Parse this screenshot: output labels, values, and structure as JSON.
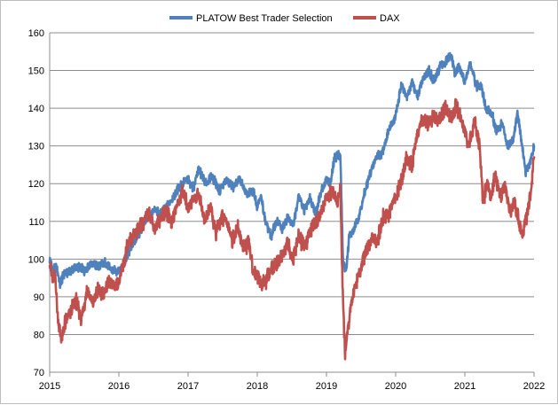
{
  "chart_data": {
    "type": "line",
    "title": "",
    "xlabel": "",
    "ylabel": "",
    "xlim": [
      2015,
      2022
    ],
    "ylim": [
      70,
      160
    ],
    "y_ticks": [
      70,
      80,
      90,
      100,
      110,
      120,
      130,
      140,
      150,
      160
    ],
    "x_ticks": [
      "2015",
      "2016",
      "2017",
      "2018",
      "2019",
      "2020",
      "2021",
      "2022"
    ],
    "grid": "horizontal",
    "legend_position": "top-center",
    "series": [
      {
        "name": "PLATOW Best Trader Selection",
        "color": "#4f81bd",
        "points": [
          [
            2015.0,
            100
          ],
          [
            2015.05,
            97
          ],
          [
            2015.1,
            98
          ],
          [
            2015.15,
            93
          ],
          [
            2015.2,
            96
          ],
          [
            2015.3,
            97
          ],
          [
            2015.4,
            98
          ],
          [
            2015.5,
            97
          ],
          [
            2015.6,
            99
          ],
          [
            2015.7,
            98
          ],
          [
            2015.8,
            99
          ],
          [
            2015.9,
            97
          ],
          [
            2016.0,
            97
          ],
          [
            2016.1,
            100
          ],
          [
            2016.2,
            104
          ],
          [
            2016.3,
            107
          ],
          [
            2016.4,
            111
          ],
          [
            2016.5,
            113
          ],
          [
            2016.6,
            112
          ],
          [
            2016.7,
            114
          ],
          [
            2016.8,
            117
          ],
          [
            2016.9,
            120
          ],
          [
            2017.0,
            121
          ],
          [
            2017.08,
            119
          ],
          [
            2017.15,
            124
          ],
          [
            2017.25,
            120
          ],
          [
            2017.35,
            122
          ],
          [
            2017.45,
            118
          ],
          [
            2017.55,
            121
          ],
          [
            2017.65,
            119
          ],
          [
            2017.75,
            121
          ],
          [
            2017.85,
            117
          ],
          [
            2017.95,
            118
          ],
          [
            2018.0,
            114
          ],
          [
            2018.05,
            117
          ],
          [
            2018.12,
            110
          ],
          [
            2018.2,
            106
          ],
          [
            2018.28,
            110
          ],
          [
            2018.36,
            108
          ],
          [
            2018.44,
            111
          ],
          [
            2018.52,
            109
          ],
          [
            2018.6,
            117
          ],
          [
            2018.68,
            113
          ],
          [
            2018.76,
            116
          ],
          [
            2018.84,
            112
          ],
          [
            2018.92,
            118
          ],
          [
            2019.0,
            121
          ],
          [
            2019.06,
            120
          ],
          [
            2019.12,
            127
          ],
          [
            2019.2,
            128
          ],
          [
            2019.24,
            99
          ],
          [
            2019.28,
            97
          ],
          [
            2019.33,
            106
          ],
          [
            2019.4,
            108
          ],
          [
            2019.48,
            112
          ],
          [
            2019.56,
            118
          ],
          [
            2019.64,
            123
          ],
          [
            2019.72,
            127
          ],
          [
            2019.8,
            128
          ],
          [
            2019.9,
            134
          ],
          [
            2020.0,
            138
          ],
          [
            2020.08,
            146
          ],
          [
            2020.16,
            143
          ],
          [
            2020.24,
            147
          ],
          [
            2020.32,
            143
          ],
          [
            2020.4,
            148
          ],
          [
            2020.48,
            150
          ],
          [
            2020.56,
            147
          ],
          [
            2020.64,
            151
          ],
          [
            2020.72,
            152
          ],
          [
            2020.8,
            154
          ],
          [
            2020.86,
            149
          ],
          [
            2020.92,
            151
          ],
          [
            2021.0,
            147
          ],
          [
            2021.08,
            152
          ],
          [
            2021.16,
            146
          ],
          [
            2021.24,
            146
          ],
          [
            2021.3,
            140
          ],
          [
            2021.38,
            139
          ],
          [
            2021.46,
            134
          ],
          [
            2021.54,
            136
          ],
          [
            2021.62,
            130
          ],
          [
            2021.7,
            132
          ],
          [
            2021.76,
            139
          ],
          [
            2021.82,
            131
          ],
          [
            2021.88,
            123
          ],
          [
            2021.94,
            125
          ],
          [
            2022.0,
            130
          ]
        ]
      },
      {
        "name": "DAX",
        "color": "#c0504d",
        "points": [
          [
            2015.0,
            100
          ],
          [
            2015.04,
            94
          ],
          [
            2015.08,
            96
          ],
          [
            2015.12,
            84
          ],
          [
            2015.17,
            78
          ],
          [
            2015.22,
            83
          ],
          [
            2015.3,
            86
          ],
          [
            2015.38,
            89
          ],
          [
            2015.46,
            84
          ],
          [
            2015.54,
            92
          ],
          [
            2015.62,
            88
          ],
          [
            2015.7,
            92
          ],
          [
            2015.78,
            91
          ],
          [
            2015.86,
            94
          ],
          [
            2015.94,
            93
          ],
          [
            2016.0,
            94
          ],
          [
            2016.06,
            98
          ],
          [
            2016.12,
            103
          ],
          [
            2016.2,
            106
          ],
          [
            2016.28,
            108
          ],
          [
            2016.36,
            110
          ],
          [
            2016.44,
            112
          ],
          [
            2016.52,
            108
          ],
          [
            2016.6,
            111
          ],
          [
            2016.68,
            113
          ],
          [
            2016.76,
            110
          ],
          [
            2016.84,
            114
          ],
          [
            2016.92,
            118
          ],
          [
            2017.0,
            114
          ],
          [
            2017.08,
            116
          ],
          [
            2017.16,
            117
          ],
          [
            2017.24,
            110
          ],
          [
            2017.32,
            114
          ],
          [
            2017.4,
            107
          ],
          [
            2017.48,
            111
          ],
          [
            2017.56,
            110
          ],
          [
            2017.64,
            105
          ],
          [
            2017.72,
            108
          ],
          [
            2017.8,
            103
          ],
          [
            2017.88,
            104
          ],
          [
            2017.94,
            97
          ],
          [
            2018.0,
            96
          ],
          [
            2018.06,
            93
          ],
          [
            2018.12,
            94
          ],
          [
            2018.2,
            97
          ],
          [
            2018.28,
            99
          ],
          [
            2018.36,
            101
          ],
          [
            2018.44,
            104
          ],
          [
            2018.52,
            100
          ],
          [
            2018.6,
            106
          ],
          [
            2018.68,
            103
          ],
          [
            2018.76,
            107
          ],
          [
            2018.84,
            110
          ],
          [
            2018.92,
            112
          ],
          [
            2019.0,
            116
          ],
          [
            2019.08,
            118
          ],
          [
            2019.16,
            115
          ],
          [
            2019.2,
            119
          ],
          [
            2019.24,
            88
          ],
          [
            2019.27,
            75
          ],
          [
            2019.3,
            80
          ],
          [
            2019.35,
            88
          ],
          [
            2019.42,
            93
          ],
          [
            2019.5,
            98
          ],
          [
            2019.58,
            102
          ],
          [
            2019.66,
            106
          ],
          [
            2019.74,
            105
          ],
          [
            2019.82,
            111
          ],
          [
            2019.9,
            112
          ],
          [
            2020.0,
            116
          ],
          [
            2020.08,
            121
          ],
          [
            2020.16,
            127
          ],
          [
            2020.24,
            125
          ],
          [
            2020.32,
            134
          ],
          [
            2020.4,
            137
          ],
          [
            2020.48,
            136
          ],
          [
            2020.56,
            138
          ],
          [
            2020.64,
            137
          ],
          [
            2020.72,
            140
          ],
          [
            2020.8,
            137
          ],
          [
            2020.88,
            141
          ],
          [
            2020.94,
            137
          ],
          [
            2021.0,
            134
          ],
          [
            2021.06,
            130
          ],
          [
            2021.14,
            137
          ],
          [
            2021.22,
            129
          ],
          [
            2021.26,
            115
          ],
          [
            2021.32,
            120
          ],
          [
            2021.38,
            117
          ],
          [
            2021.44,
            122
          ],
          [
            2021.52,
            117
          ],
          [
            2021.58,
            119
          ],
          [
            2021.66,
            112
          ],
          [
            2021.72,
            115
          ],
          [
            2021.78,
            110
          ],
          [
            2021.84,
            106
          ],
          [
            2021.9,
            112
          ],
          [
            2021.96,
            119
          ],
          [
            2022.0,
            127
          ]
        ]
      }
    ]
  }
}
